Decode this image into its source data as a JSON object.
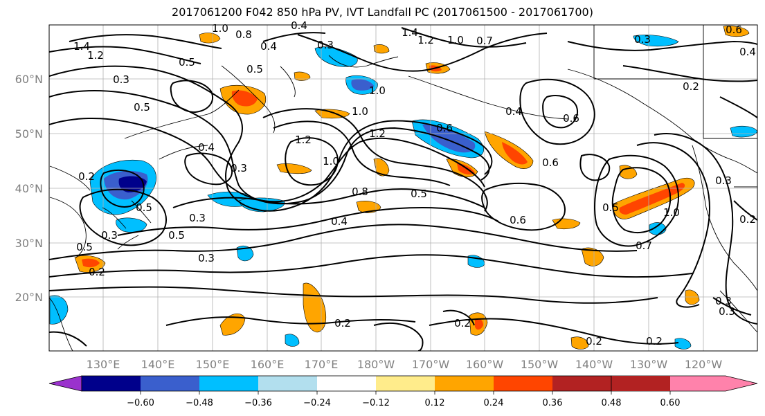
{
  "title": "2017061200 F042 850 hPa PV, IVT Landfall PC (2017061500 - 2017061700)",
  "lat_labels": [
    "60°N",
    "50°N",
    "40°N",
    "30°N",
    "20°N"
  ],
  "lon_labels": [
    "130°E",
    "140°E",
    "150°E",
    "160°E",
    "170°E",
    "180°W",
    "170°W",
    "160°W",
    "150°W",
    "140°W",
    "130°W",
    "120°W"
  ],
  "colorbar": {
    "ticks": [
      "−0.60",
      "−0.48",
      "−0.36",
      "−0.24",
      "−0.12",
      "0.12",
      "0.24",
      "0.36",
      "0.48",
      "0.60"
    ],
    "colors": [
      "#9a32cd",
      "#00008b",
      "#3a5fcd",
      "#00bfff",
      "#b2dfee",
      "#ffffff",
      "#ffec8b",
      "#ffa500",
      "#ff4500",
      "#b22222",
      "#ff82ab"
    ]
  },
  "contour_labels": [
    "1.0",
    "0.8",
    "0.4",
    "0.5",
    "1.4",
    "1.2",
    "0.3",
    "0.4",
    "1.4",
    "1.2",
    "1.0",
    "0.7",
    "0.3",
    "0.4",
    "0.6",
    "0.2",
    "0.3",
    "1.0",
    "0.5",
    "1.0",
    "0.6",
    "0.4",
    "0.6",
    "1.2",
    "0.4",
    "0.3",
    "1.2",
    "1.0",
    "0.6",
    "0.2",
    "0.5",
    "0.3",
    "0.8",
    "0.5",
    "0.3",
    "0.4",
    "0.6",
    "0.5",
    "0.7",
    "0.5",
    "0.2",
    "0.3",
    "0.5",
    "0.3",
    "0.2",
    "0.2",
    "0.2",
    "0.2",
    "1.0",
    "0.3",
    "0.5",
    "0.2",
    "0.3"
  ]
}
